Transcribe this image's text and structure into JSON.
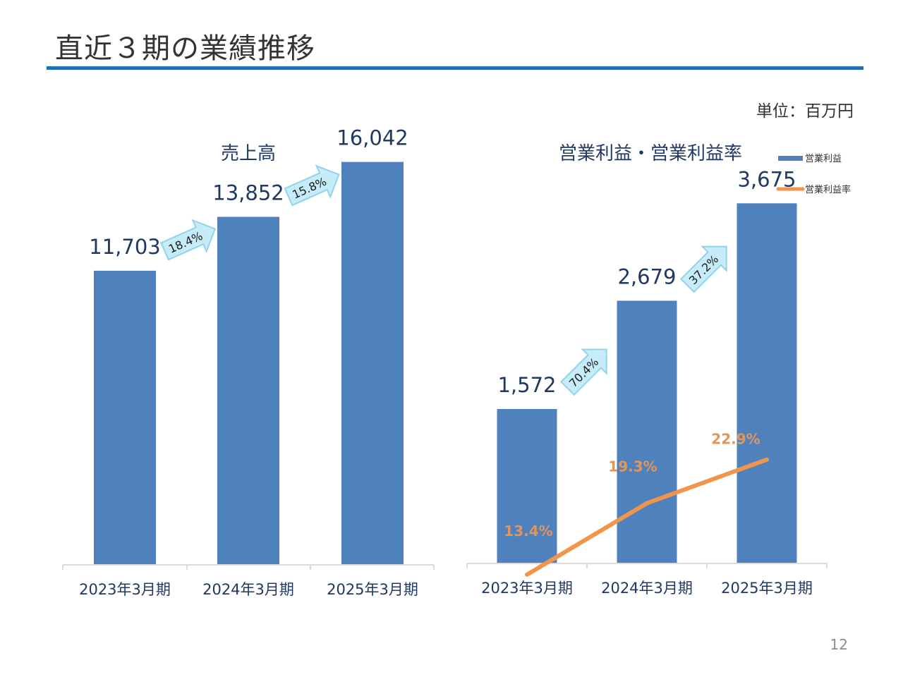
{
  "page": {
    "title": "直近３期の業績推移",
    "unit": "単位：百万円",
    "page_number": "12"
  },
  "colors": {
    "bar": "#4f81bd",
    "line": "#f0964c",
    "accent_rule": "#1f6fb5",
    "arrow_fill": "#c5ecf8",
    "arrow_stroke": "#8fd3ec"
  },
  "chart_data": [
    {
      "type": "bar",
      "title": "売上高",
      "categories": [
        "2023年3月期",
        "2024年3月期",
        "2025年3月期"
      ],
      "values": [
        11703,
        13852,
        16042
      ],
      "value_labels": [
        "11,703",
        "13,852",
        "16,042"
      ],
      "growth_arrows": [
        "18.4%",
        "15.8%"
      ],
      "ylim": [
        0,
        18000
      ],
      "grid": false
    },
    {
      "type": "bar+line",
      "title": "営業利益・営業利益率",
      "categories": [
        "2023年3月期",
        "2024年3月期",
        "2025年3月期"
      ],
      "series": [
        {
          "name": "営業利益",
          "type": "bar",
          "values": [
            1572,
            2679,
            3675
          ],
          "value_labels": [
            "1,572",
            "2,679",
            "3,675"
          ]
        },
        {
          "name": "営業利益率",
          "type": "line",
          "values": [
            13.4,
            19.3,
            22.9
          ],
          "value_labels": [
            "13.4%",
            "19.3%",
            "22.9%"
          ]
        }
      ],
      "growth_arrows": [
        "70.4%",
        "37.2%"
      ],
      "ylim": [
        0,
        4600
      ],
      "y2lim": [
        0,
        40
      ],
      "legend": "top-right",
      "grid": false
    }
  ]
}
